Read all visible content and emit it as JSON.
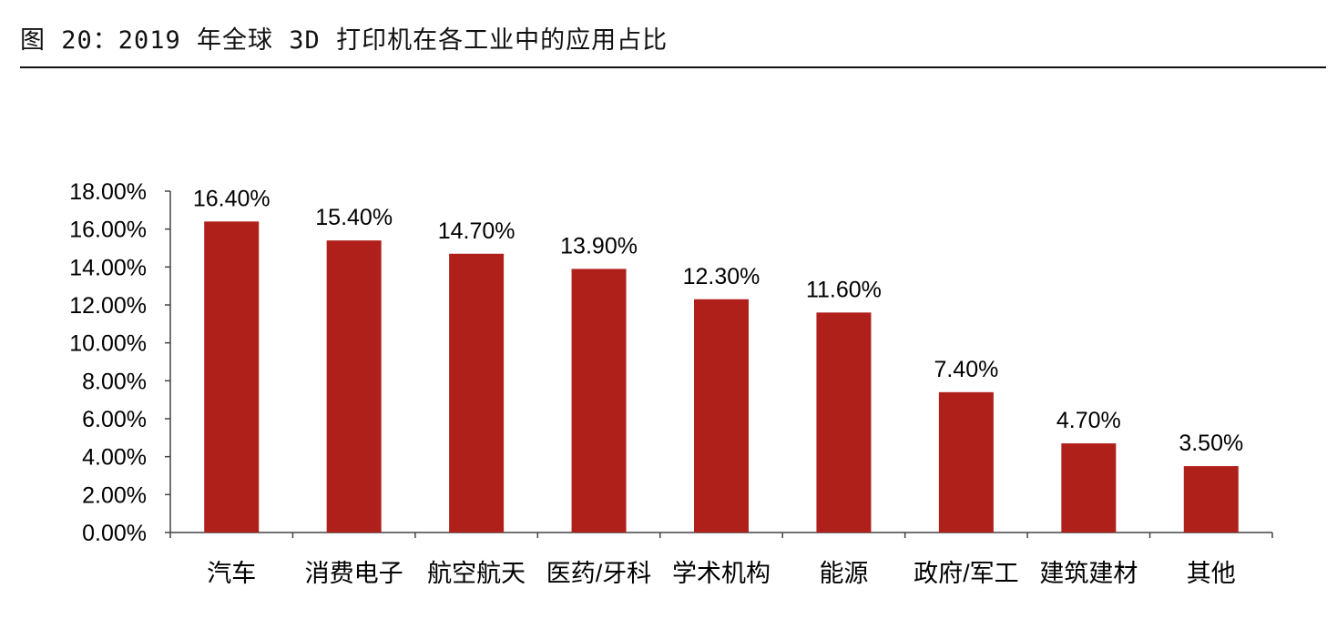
{
  "figure_title": "图 20：2019 年全球 3D 打印机在各工业中的应用占比",
  "colors": {
    "bar": "#b0201b",
    "axis": "#444444",
    "text": "#000000"
  },
  "chart_data": {
    "type": "bar",
    "title": "",
    "xlabel": "",
    "ylabel": "",
    "categories": [
      "汽车",
      "消费电子",
      "航空航天",
      "医药/牙科",
      "学术机构",
      "能源",
      "政府/军工",
      "建筑建材",
      "其他"
    ],
    "values": [
      16.4,
      15.4,
      14.7,
      13.9,
      12.3,
      11.6,
      7.4,
      4.7,
      3.5
    ],
    "value_labels": [
      "16.40%",
      "15.40%",
      "14.70%",
      "13.90%",
      "12.30%",
      "11.60%",
      "7.40%",
      "4.70%",
      "3.50%"
    ],
    "ylim": [
      0,
      18
    ],
    "yticks": [
      0,
      2,
      4,
      6,
      8,
      10,
      12,
      14,
      16,
      18
    ],
    "ytick_labels": [
      "0.00%",
      "2.00%",
      "4.00%",
      "6.00%",
      "8.00%",
      "10.00%",
      "12.00%",
      "14.00%",
      "16.00%",
      "18.00%"
    ],
    "grid": false,
    "legend": "none"
  }
}
